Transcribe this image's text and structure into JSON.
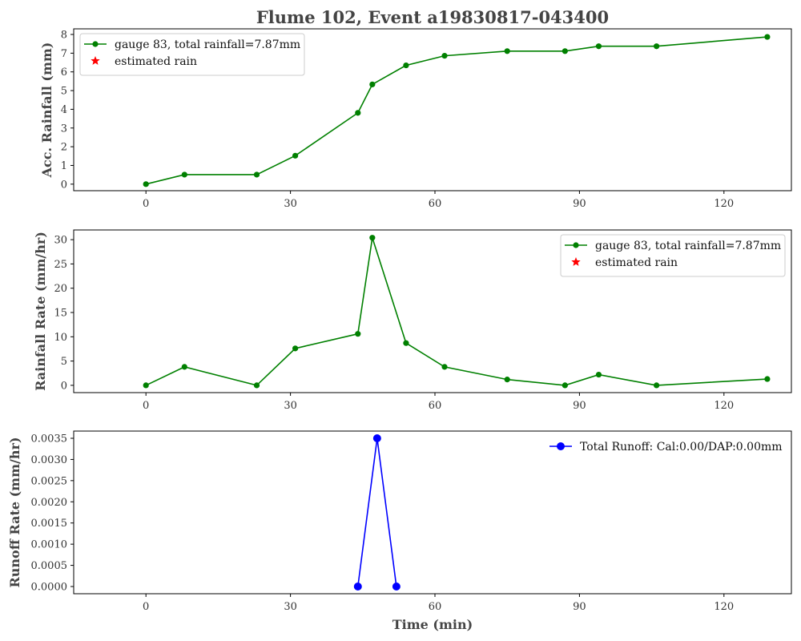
{
  "chart_data": {
    "title": "Flume 102, Event a19830817-043400",
    "xlabel": "Time (min)",
    "xlim": [
      -15,
      134
    ],
    "xticks": [
      0,
      30,
      60,
      90,
      120
    ],
    "colors": {
      "gauge": "#008000",
      "estimated": "#ff0000",
      "runoff": "#0000ff"
    },
    "panels": [
      {
        "id": "acc",
        "type": "line",
        "ylabel": "Acc. Rainfall (mm)",
        "ylim": [
          -0.35,
          8.3
        ],
        "yticks": [
          0,
          1,
          2,
          3,
          4,
          5,
          6,
          7,
          8
        ],
        "ytick_labels": [
          "0",
          "1",
          "2",
          "3",
          "4",
          "5",
          "6",
          "7",
          "8"
        ],
        "legend_position": "top-left",
        "series": [
          {
            "name": "gauge 83, total rainfall=7.87mm",
            "marker": "circle",
            "color": "#008000",
            "x": [
              0,
              8,
              23,
              31,
              44,
              47,
              54,
              62,
              75,
              87,
              94,
              106,
              129
            ],
            "y": [
              0,
              0.51,
              0.51,
              1.52,
              3.81,
              5.33,
              6.35,
              6.86,
              7.11,
              7.11,
              7.37,
              7.37,
              7.87
            ]
          },
          {
            "name": "estimated rain",
            "marker": "star",
            "color": "#ff0000",
            "x": [],
            "y": []
          }
        ]
      },
      {
        "id": "rate",
        "type": "line",
        "ylabel": "Rainfall Rate (mm/hr)",
        "ylim": [
          -1.5,
          32
        ],
        "yticks": [
          0,
          5,
          10,
          15,
          20,
          25,
          30
        ],
        "ytick_labels": [
          "0",
          "5",
          "10",
          "15",
          "20",
          "25",
          "30"
        ],
        "legend_position": "top-right",
        "series": [
          {
            "name": "gauge 83, total rainfall=7.87mm",
            "marker": "circle",
            "color": "#008000",
            "x": [
              0,
              8,
              23,
              31,
              44,
              47,
              54,
              62,
              75,
              87,
              94,
              106,
              129
            ],
            "y": [
              0,
              3.8,
              0,
              7.6,
              10.6,
              30.4,
              8.7,
              3.8,
              1.2,
              0,
              2.2,
              0,
              1.3
            ]
          },
          {
            "name": "estimated rain",
            "marker": "star",
            "color": "#ff0000",
            "x": [],
            "y": []
          }
        ]
      },
      {
        "id": "runoff",
        "type": "line",
        "ylabel": "Runoff Rate (mm/hr)",
        "ylim": [
          -0.00017,
          0.00367
        ],
        "yticks": [
          0,
          0.0005,
          0.001,
          0.0015,
          0.002,
          0.0025,
          0.003,
          0.0035
        ],
        "ytick_labels": [
          "0.0000",
          "0.0005",
          "0.0010",
          "0.0015",
          "0.0020",
          "0.0025",
          "0.0030",
          "0.0035"
        ],
        "legend_position": "top-right",
        "series": [
          {
            "name": "Total Runoff: Cal:0.00/DAP:0.00mm",
            "marker": "circle-large",
            "color": "#0000ff",
            "x": [
              44,
              48,
              52
            ],
            "y": [
              0,
              0.0035,
              0
            ]
          }
        ]
      }
    ]
  }
}
